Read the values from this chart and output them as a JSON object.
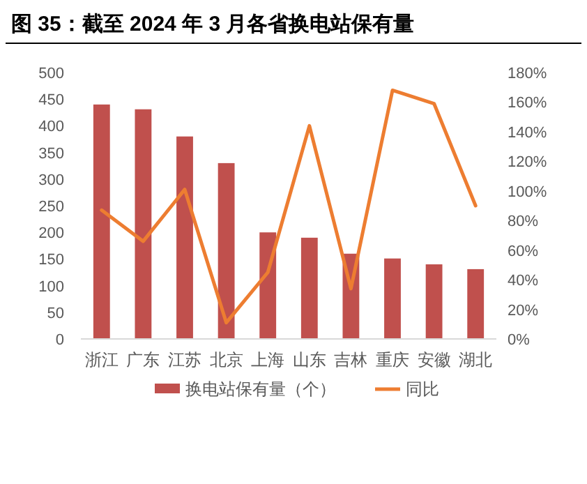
{
  "chart_data": {
    "type": "bar",
    "title": "图 35：截至 2024 年 3 月各省换电站保有量",
    "categories": [
      "浙江",
      "广东",
      "江苏",
      "北京",
      "上海",
      "山东",
      "吉林",
      "重庆",
      "安徽",
      "湖北"
    ],
    "series": [
      {
        "name": "换电站保有量（个）",
        "color": "#c0504d",
        "values": [
          440,
          431,
          380,
          330,
          200,
          190,
          160,
          151,
          140,
          131
        ]
      },
      {
        "name": "同比",
        "type": "line",
        "axis": "y2",
        "color": "#ed7d31",
        "values": [
          87,
          66,
          101,
          11,
          45,
          144,
          34,
          168,
          159,
          90
        ]
      }
    ],
    "ylim": [
      0,
      500
    ],
    "yticks": [
      0,
      50,
      100,
      150,
      200,
      250,
      300,
      350,
      400,
      450,
      500
    ],
    "y2lim": [
      0,
      180
    ],
    "y2ticks": [
      {
        "value": 0,
        "label": "0%"
      },
      {
        "value": 20,
        "label": "20%"
      },
      {
        "value": 40,
        "label": "40%"
      },
      {
        "value": 60,
        "label": "60%"
      },
      {
        "value": 80,
        "label": "80%"
      },
      {
        "value": 100,
        "label": "100%"
      },
      {
        "value": 120,
        "label": "120%"
      },
      {
        "value": 140,
        "label": "140%"
      },
      {
        "value": 160,
        "label": "160%"
      },
      {
        "value": 180,
        "label": "180%"
      }
    ],
    "legend": "bottom",
    "grid": false,
    "marker": "none",
    "line_style": "solid"
  }
}
